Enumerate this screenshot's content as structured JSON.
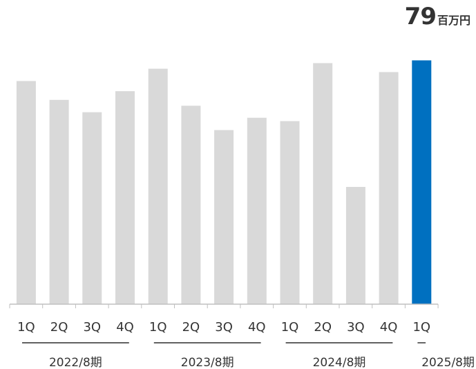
{
  "headline": {
    "value": "79",
    "unit": "百万円"
  },
  "chart_data": {
    "type": "bar",
    "categories": [
      "1Q",
      "2Q",
      "3Q",
      "4Q",
      "1Q",
      "2Q",
      "3Q",
      "4Q",
      "1Q",
      "2Q",
      "3Q",
      "4Q",
      "1Q"
    ],
    "groups": [
      {
        "label": "2022/8期",
        "quarters": 4
      },
      {
        "label": "2023/8期",
        "quarters": 4
      },
      {
        "label": "2024/8期",
        "quarters": 4
      },
      {
        "label": "2025/8期",
        "quarters": 1
      }
    ],
    "values": [
      72.3,
      66.2,
      62.2,
      69.0,
      76.3,
      64.3,
      56.4,
      60.4,
      59.3,
      78.1,
      38.0,
      75.2,
      79.0
    ],
    "highlight_index": 12,
    "colors": {
      "default": "#d9d9d9",
      "highlight": "#0070c0",
      "axis": "#bfbfbf",
      "text": "#333333"
    },
    "ylim": [
      0,
      80
    ],
    "title": "",
    "xlabel": "",
    "ylabel": "",
    "grid": false
  }
}
